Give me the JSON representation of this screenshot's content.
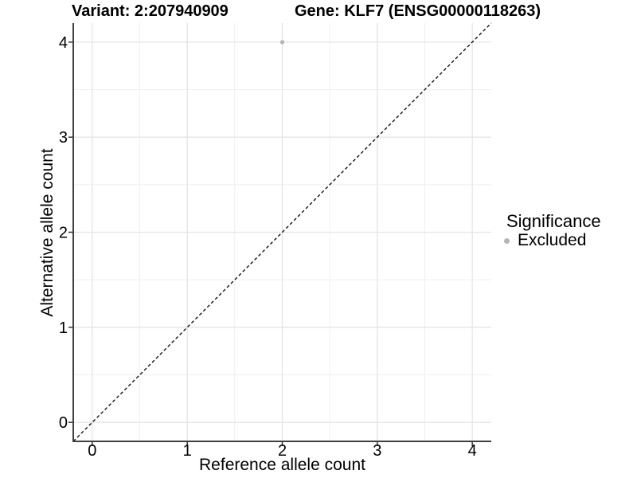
{
  "chart_data": {
    "type": "scatter",
    "title_variant": "Variant: 2:207940909",
    "title_gene": "Gene: KLF7 (ENSG00000118263)",
    "xlabel": "Reference allele count",
    "ylabel": "Alternative allele count",
    "xlim": [
      -0.2,
      4.2
    ],
    "ylim": [
      -0.2,
      4.2
    ],
    "x_major_ticks": [
      0,
      1,
      2,
      3,
      4
    ],
    "y_major_ticks": [
      0,
      1,
      2,
      3,
      4
    ],
    "x_minor_ticks": [
      0.5,
      1.5,
      2.5,
      3.5
    ],
    "y_minor_ticks": [
      0.5,
      1.5,
      2.5,
      3.5
    ],
    "grid": true,
    "identity_line": {
      "slope": 1,
      "intercept": 0,
      "style": "dashed",
      "color": "#000000"
    },
    "series": [
      {
        "name": "Excluded",
        "color": "#b5b5b5",
        "points": [
          {
            "x": 2,
            "y": 4
          }
        ]
      }
    ],
    "legend": {
      "title": "Significance",
      "position": "right",
      "items": [
        {
          "label": "Excluded",
          "color": "#b5b5b5"
        }
      ]
    },
    "colors": {
      "background": "#ffffff",
      "grid_major": "#e4e4e4",
      "grid_minor": "#efefef",
      "axis_line": "#404040",
      "tick_mark": "#333333",
      "text": "#000000"
    }
  }
}
